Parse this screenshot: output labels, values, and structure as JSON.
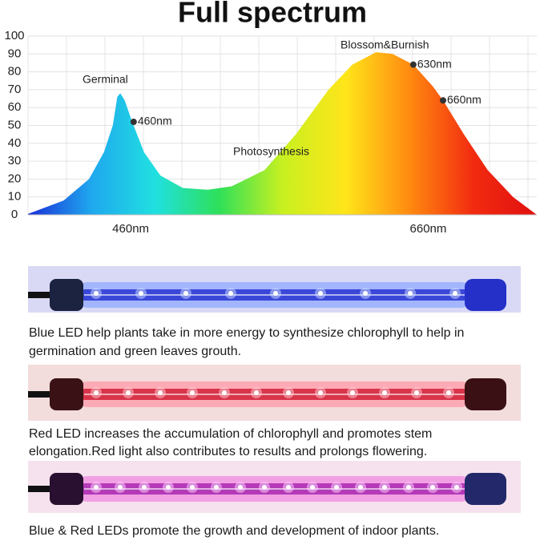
{
  "chart_data": {
    "type": "area",
    "title": "Full spectrum",
    "x": [
      391,
      415,
      432,
      442,
      448,
      451,
      453,
      456,
      461,
      469,
      480,
      495,
      512,
      528,
      550,
      571,
      593,
      609,
      625,
      636,
      650,
      663,
      670,
      684,
      700,
      717,
      733
    ],
    "values": [
      0.5,
      8,
      20,
      35,
      50,
      66,
      68,
      64,
      52,
      35,
      22,
      15,
      14,
      16,
      25,
      45,
      70,
      84,
      91,
      90,
      84,
      72,
      64,
      45,
      25,
      10,
      0
    ],
    "gradient": [
      "#1a2fd8",
      "#1fa8ee",
      "#20e0e0",
      "#2ee05a",
      "#c8f020",
      "#ffe51a",
      "#ff8a10",
      "#f22b10",
      "#e01010"
    ],
    "xlim": [
      391,
      733
    ],
    "ylim": [
      0,
      100
    ],
    "xticks": [
      {
        "value": 460,
        "label": "460nm"
      },
      {
        "value": 660,
        "label": "660nm"
      }
    ],
    "yticks": [
      0,
      10,
      20,
      30,
      40,
      50,
      60,
      70,
      80,
      90,
      100
    ],
    "grid": true,
    "points": [
      {
        "label": "460nm",
        "x": 462,
        "y": 52
      },
      {
        "label": "630nm",
        "x": 650,
        "y": 84
      },
      {
        "label": "660nm",
        "x": 670,
        "y": 64
      }
    ],
    "annotations": [
      "Germinal",
      "Photosynthesis",
      "Blossom&Burnish"
    ]
  },
  "panels": [
    {
      "caption": [
        "Blue LED help plants take in more energy to synthesize chlorophyll to help in",
        "germination and green leaves grouth."
      ]
    },
    {
      "caption": [
        "Red LED increases the accumulation of chlorophyll and promotes stem",
        "elongation.Red light also contributes to results and prolongs flowering."
      ]
    },
    {
      "caption": [
        "Blue & Red LEDs promote the growth and development of indoor plants."
      ]
    }
  ]
}
